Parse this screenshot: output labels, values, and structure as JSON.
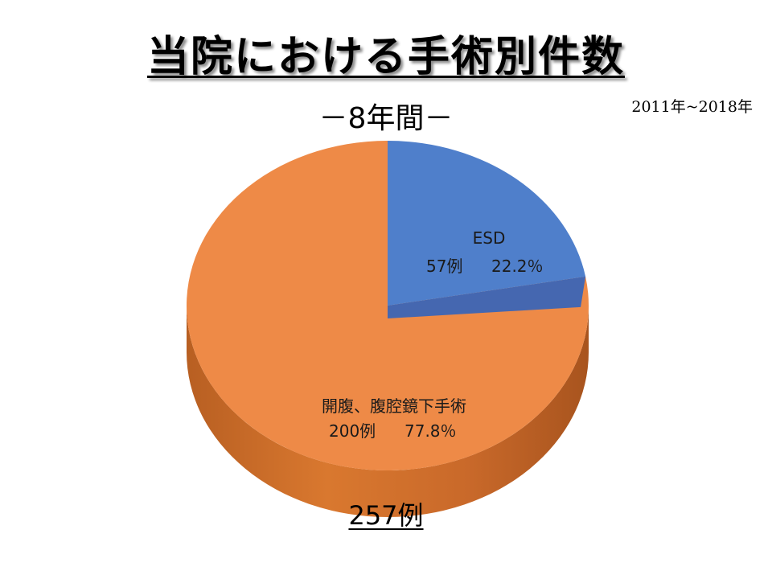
{
  "title": "当院における手術別件数",
  "subtitle": "－8年間－",
  "date_range": "2011年~2018年",
  "total_label": "257例",
  "colors": {
    "esd": "#4F7FCB",
    "surgery": "#EE8A47"
  },
  "chart_data": {
    "type": "pie",
    "title": "当院における手術別件数",
    "slices": [
      {
        "name": "ESD",
        "count_label": "57例",
        "pct_label": "22.2％",
        "value": 57,
        "color": "#4F7FCB"
      },
      {
        "name": "開腹、腹腔鏡下手術",
        "count_label": "200例",
        "pct_label": "77.8％",
        "value": 200,
        "color": "#EE8A47"
      }
    ],
    "total": 257
  }
}
